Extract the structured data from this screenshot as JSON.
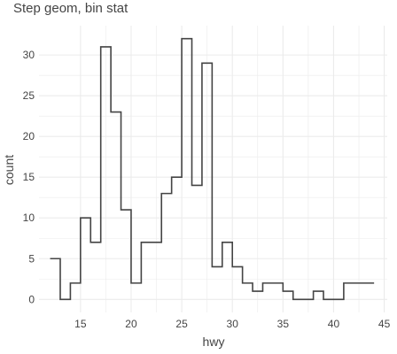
{
  "chart_data": {
    "type": "line",
    "step": true,
    "title": "Step geom, bin stat",
    "xlabel": "hwy",
    "ylabel": "count",
    "xlim": [
      10.9,
      45.3
    ],
    "ylim": [
      -1.6,
      33.6
    ],
    "xticks": [
      15,
      20,
      25,
      30,
      35,
      40,
      45
    ],
    "yticks": [
      0,
      5,
      10,
      15,
      20,
      25,
      30
    ],
    "grid": true,
    "legend": "none",
    "line_color": "#444444",
    "grid_color": "#ebebeb",
    "x": [
      12,
      13,
      14,
      15,
      16,
      17,
      18,
      19,
      20,
      21,
      22,
      23,
      24,
      25,
      26,
      27,
      28,
      29,
      30,
      31,
      32,
      33,
      34,
      35,
      36,
      37,
      38,
      39,
      40,
      41,
      42,
      43,
      44
    ],
    "values": [
      5,
      0,
      2,
      10,
      7,
      31,
      23,
      11,
      2,
      7,
      7,
      13,
      15,
      32,
      14,
      29,
      4,
      7,
      4,
      2,
      1,
      2,
      2,
      1,
      0,
      0,
      1,
      0,
      0,
      2,
      2,
      2,
      2
    ]
  }
}
